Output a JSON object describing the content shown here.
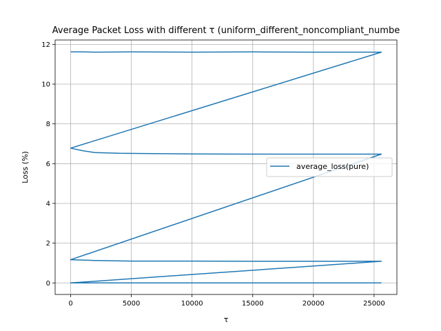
{
  "chart_data": {
    "type": "line",
    "title": "Average Packet Loss with different τ (uniform_different_noncompliant_numbe",
    "xlabel": "τ",
    "ylabel": "Loss (%)",
    "xlim": [
      -1280,
      26880
    ],
    "ylim": [
      -0.58,
      12.22
    ],
    "xticks": [
      0,
      5000,
      10000,
      15000,
      20000,
      25000
    ],
    "xtick_labels": [
      "0",
      "5000",
      "10000",
      "15000",
      "20000",
      "25000"
    ],
    "yticks": [
      0,
      2,
      4,
      6,
      8,
      10,
      12
    ],
    "ytick_labels": [
      "0",
      "2",
      "4",
      "6",
      "8",
      "10",
      "12"
    ],
    "grid": true,
    "legend_position": "right",
    "series": [
      {
        "name": "average_loss(pure)",
        "color": "#1f77b4",
        "x": [
          0,
          1000,
          2000,
          5000,
          10000,
          15000,
          20000,
          25600,
          0,
          1000,
          2000,
          4000,
          6000,
          10000,
          15000,
          20000,
          25600,
          0,
          2000,
          5000,
          10000,
          15000,
          20000,
          25600,
          0,
          1000,
          2000,
          5000,
          10000,
          15000,
          20000,
          25600
        ],
        "y": [
          11.62,
          11.62,
          11.61,
          11.62,
          11.61,
          11.62,
          11.61,
          11.61,
          6.78,
          6.65,
          6.56,
          6.52,
          6.51,
          6.49,
          6.48,
          6.48,
          6.48,
          1.17,
          1.13,
          1.1,
          1.1,
          1.09,
          1.09,
          1.09,
          0.0,
          0.0,
          0.0,
          0.0,
          0.0,
          0.0,
          0.0,
          0.0
        ]
      }
    ]
  }
}
